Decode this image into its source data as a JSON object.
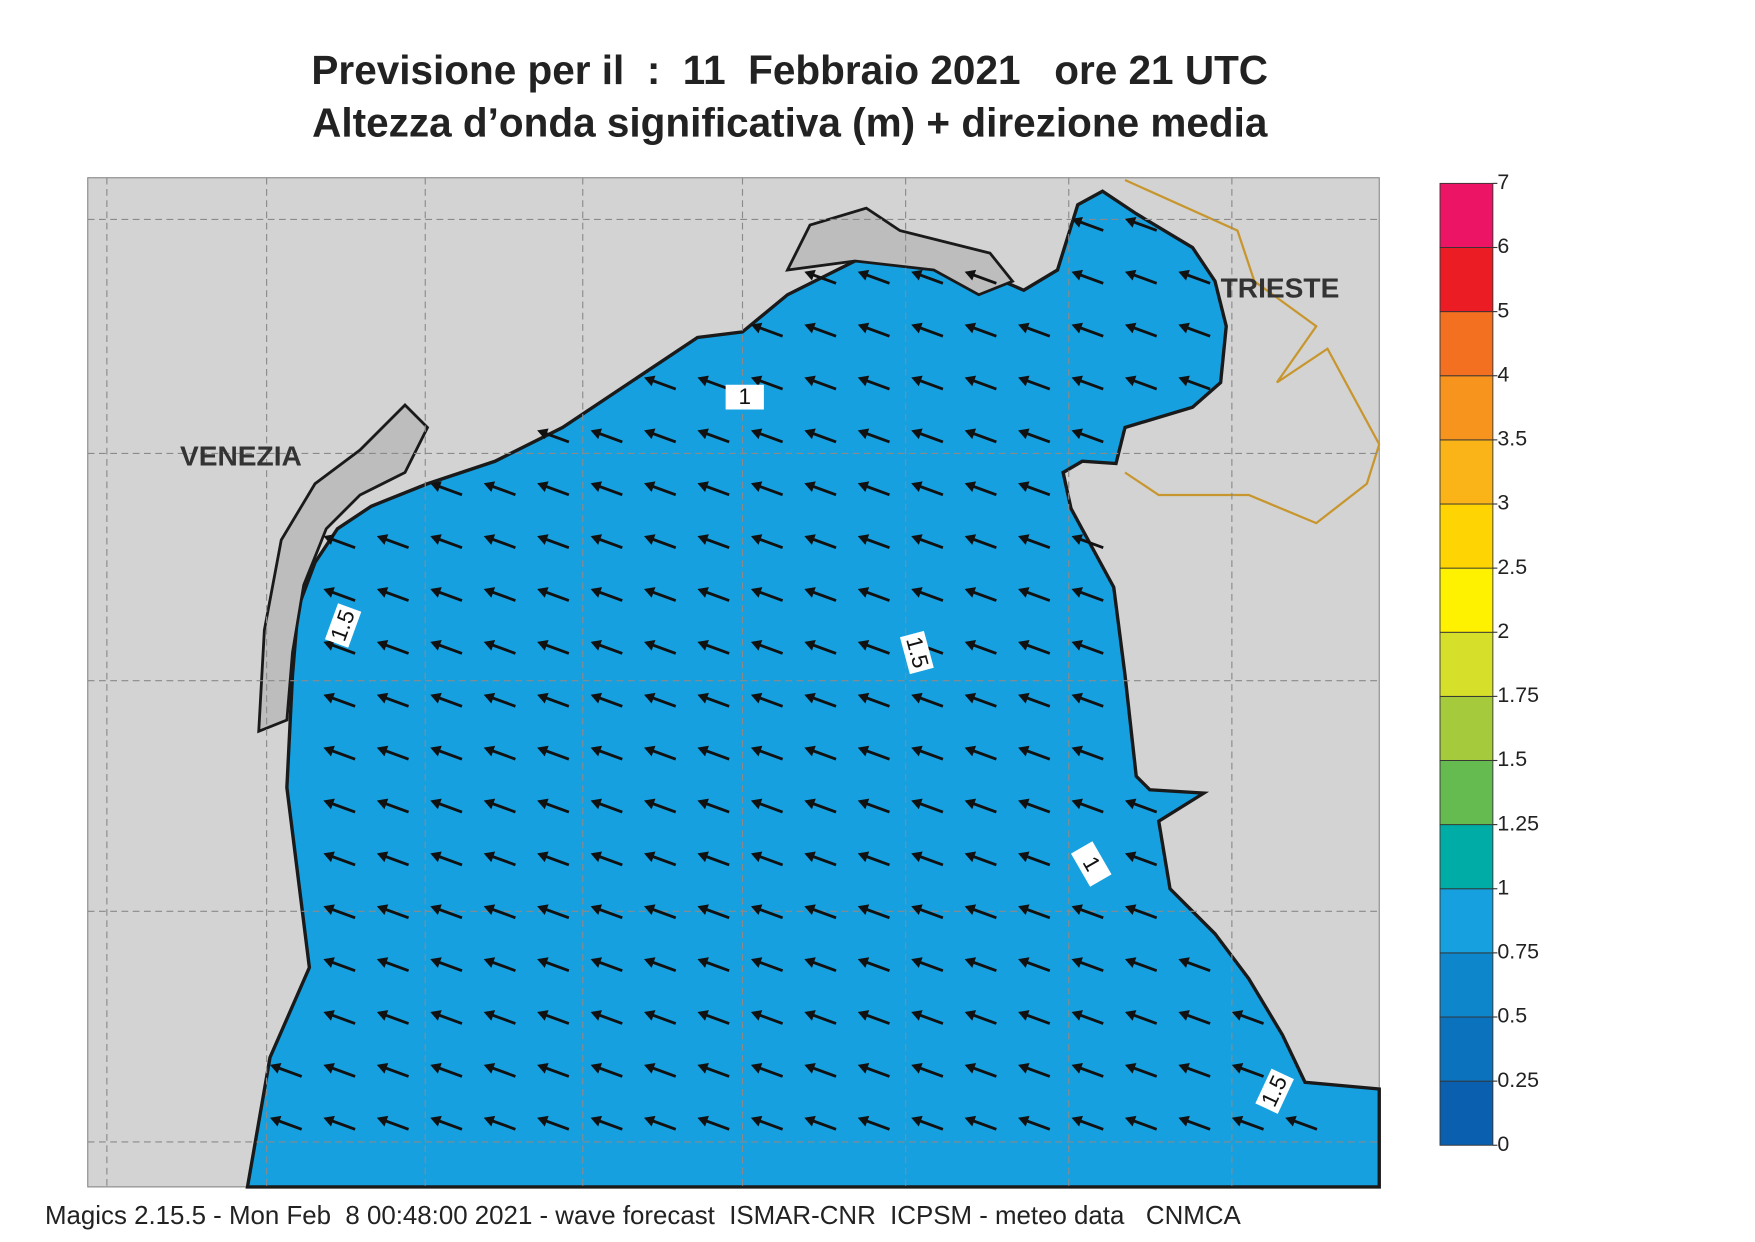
{
  "header": {
    "title": "Previsione per il  :  11  Febbraio 2021   ore 21 UTC",
    "subtitle": "Altezza d’onda significativa (m) + direzione media"
  },
  "map": {
    "places": [
      "VENEZIA",
      "TRIESTE"
    ],
    "contour_labels": [
      "1",
      "1.5",
      "1.5",
      "1",
      "1.5"
    ]
  },
  "colorbar": {
    "levels": [
      0,
      0.25,
      0.5,
      0.75,
      1,
      1.25,
      1.5,
      1.75,
      2,
      2.5,
      3,
      3.5,
      4,
      5,
      6,
      7
    ],
    "colors": [
      "#0a5fae",
      "#0b72bd",
      "#0e86cc",
      "#16a0e0",
      "#00ada6",
      "#66bb50",
      "#a5ca3b",
      "#d6df2a",
      "#fff200",
      "#fed503",
      "#fbb417",
      "#f7941d",
      "#f37021",
      "#ec1c24",
      "#ec1464"
    ]
  },
  "footer": "Magics 2.15.5 - Mon Feb  8 00:48:00 2021 - wave forecast  ISMAR-CNR  ICPSM - meteo data   CNMCA"
}
